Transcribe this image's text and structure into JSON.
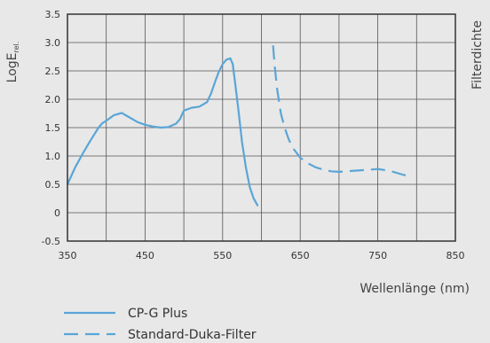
{
  "chart_data": {
    "type": "line",
    "xlabel": "Wellenlänge (nm)",
    "ylabel": "LogE",
    "ylabel_sub": "rel.",
    "y2label": "Filterdichte",
    "xlim": [
      350,
      850
    ],
    "ylim": [
      -0.5,
      3.5
    ],
    "xticks": [
      "350",
      "450",
      "550",
      "650",
      "750",
      "850"
    ],
    "yticks": [
      "-0.5",
      "0",
      "0.5",
      "1.0",
      "1.5",
      "2.0",
      "2.5",
      "3.0",
      "3.5"
    ],
    "grid": true,
    "series_color": "#5aa5d6",
    "frame_color": "#333333",
    "grid_color": "#555555",
    "series": [
      {
        "name": "CP-G Plus",
        "style": "solid",
        "x": [
          350,
          360,
          370,
          380,
          390,
          395,
          400,
          410,
          420,
          430,
          440,
          450,
          460,
          470,
          480,
          490,
          495,
          500,
          510,
          520,
          530,
          535,
          540,
          545,
          550,
          555,
          560,
          563,
          566,
          570,
          575,
          580,
          585,
          590,
          595
        ],
        "y": [
          0.5,
          0.8,
          1.05,
          1.28,
          1.5,
          1.58,
          1.62,
          1.72,
          1.76,
          1.68,
          1.6,
          1.55,
          1.52,
          1.5,
          1.51,
          1.57,
          1.65,
          1.8,
          1.85,
          1.87,
          1.95,
          2.1,
          2.3,
          2.48,
          2.62,
          2.7,
          2.72,
          2.62,
          2.3,
          1.85,
          1.25,
          0.8,
          0.45,
          0.25,
          0.13
        ]
      },
      {
        "name": "Standard-Duka-Filter",
        "style": "dashed",
        "x": [
          615,
          617,
          620,
          625,
          630,
          635,
          640,
          650,
          660,
          670,
          680,
          690,
          700,
          710,
          720,
          730,
          740,
          750,
          760,
          770,
          780,
          790
        ],
        "y": [
          2.95,
          2.6,
          2.2,
          1.75,
          1.5,
          1.3,
          1.15,
          0.97,
          0.87,
          0.8,
          0.76,
          0.73,
          0.72,
          0.73,
          0.74,
          0.75,
          0.76,
          0.77,
          0.75,
          0.72,
          0.68,
          0.64
        ]
      }
    ]
  }
}
